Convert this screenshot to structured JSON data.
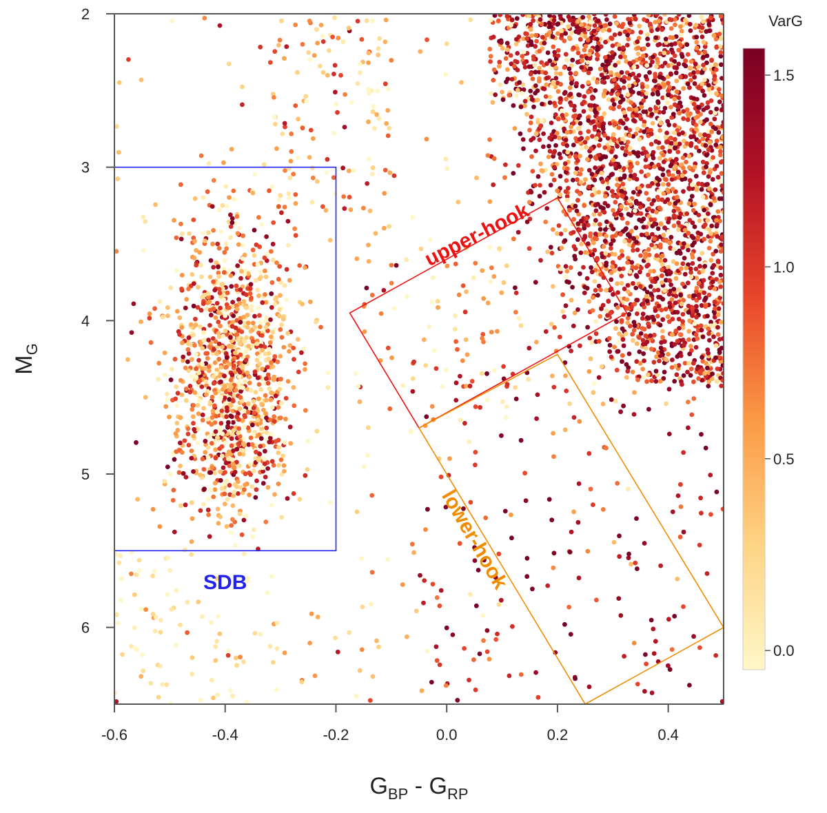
{
  "chart_data": {
    "type": "scatter",
    "title": "",
    "xlabel": {
      "main": "G",
      "sub1": "BP",
      "mid": " - G",
      "sub2": "RP"
    },
    "ylabel": {
      "main": "M",
      "sub": "G"
    },
    "xlim": [
      -0.6,
      0.5
    ],
    "ylim": [
      6.5,
      2.0
    ],
    "y_inverted": true,
    "x_ticks": [
      "-0.6",
      "-0.4",
      "-0.2",
      "0.0",
      "0.2",
      "0.4"
    ],
    "x_tick_values": [
      -0.6,
      -0.4,
      -0.2,
      0.0,
      0.2,
      0.4
    ],
    "y_ticks": [
      "2",
      "3",
      "4",
      "5",
      "6"
    ],
    "y_tick_values": [
      2,
      3,
      4,
      5,
      6
    ],
    "colorbar": {
      "title": "VarG",
      "range": [
        -0.05,
        1.57
      ],
      "ticks": [
        "0.0",
        "0.5",
        "1.0",
        "1.5"
      ],
      "tick_values": [
        0.0,
        0.5,
        1.0,
        1.5
      ],
      "colors": [
        "#fff7c8",
        "#fed485",
        "#fb9a45",
        "#e8462a",
        "#b21226",
        "#7a0024"
      ]
    },
    "regions": [
      {
        "label": "SDB",
        "color": "#2222ee",
        "polygon": [
          [
            -0.6,
            3.0
          ],
          [
            -0.2,
            3.0
          ],
          [
            -0.2,
            5.5
          ],
          [
            -0.6,
            5.5
          ]
        ],
        "label_pos": [
          -0.4,
          5.75
        ]
      },
      {
        "label": "upper-hook",
        "color": "#ee1111",
        "polygon": [
          [
            -0.175,
            3.95
          ],
          [
            0.2,
            3.2
          ],
          [
            0.325,
            3.95
          ],
          [
            -0.05,
            4.7
          ]
        ],
        "label_pos": [
          0.06,
          3.48
        ],
        "label_rotation": -27
      },
      {
        "label": "lower-hook",
        "color": "#f08c00",
        "polygon": [
          [
            -0.05,
            4.7
          ],
          [
            0.2,
            4.22
          ],
          [
            0.5,
            6.0
          ],
          [
            0.25,
            6.5
          ]
        ],
        "label_pos": [
          0.04,
          5.45
        ],
        "label_rotation": 60
      }
    ],
    "populations": [
      {
        "name": "main-sequence",
        "n": 2600,
        "shape": "corner",
        "x": [
          0.07,
          0.5
        ],
        "y": [
          2.0,
          4.4
        ],
        "v_mean": 1.05,
        "v_sd": 0.5
      },
      {
        "name": "sdb-cluster",
        "n": 1150,
        "shape": "gauss",
        "x_mean": -0.39,
        "x_sd": 0.055,
        "y_mean": 4.35,
        "y_sd": 0.5,
        "v_mean": 0.6,
        "v_sd": 0.5
      },
      {
        "name": "upper-hook-stars",
        "n": 110,
        "shape": "band",
        "x": [
          -0.17,
          0.32
        ],
        "y": [
          3.5,
          4.7
        ],
        "v_mean": 0.55,
        "v_sd": 0.5
      },
      {
        "name": "lower-hook-stars",
        "n": 190,
        "shape": "band",
        "x": [
          -0.05,
          0.5
        ],
        "y": [
          4.2,
          6.5
        ],
        "v_mean": 1.2,
        "v_sd": 0.45
      },
      {
        "name": "hot-stragglers",
        "n": 190,
        "shape": "uniform",
        "x": [
          -0.6,
          0.1
        ],
        "y": [
          2.0,
          6.5
        ],
        "v_mean": 0.3,
        "v_sd": 0.45
      },
      {
        "name": "faint-blue-tail",
        "n": 70,
        "shape": "uniform",
        "x": [
          -0.6,
          -0.3
        ],
        "y": [
          5.5,
          6.5
        ],
        "v_mean": 0.05,
        "v_sd": 0.15
      },
      {
        "name": "upper-sdb-arm",
        "n": 120,
        "shape": "uniform",
        "x": [
          -0.32,
          -0.1
        ],
        "y": [
          2.0,
          3.3
        ],
        "v_mean": 0.5,
        "v_sd": 0.45
      }
    ]
  }
}
